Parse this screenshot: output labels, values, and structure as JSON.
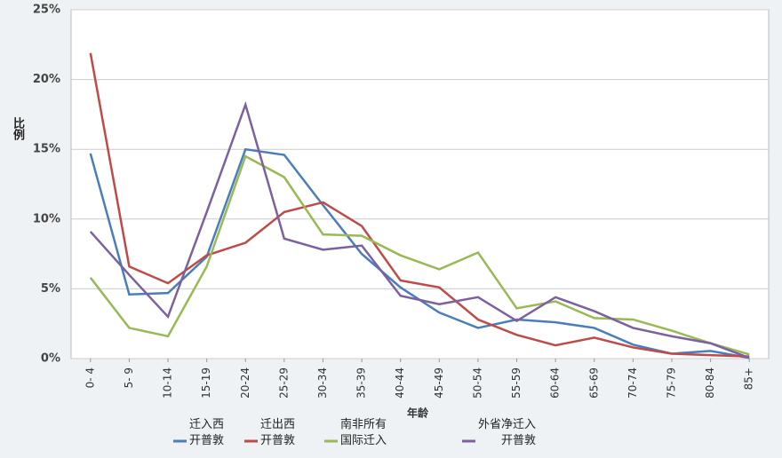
{
  "chart_data": {
    "type": "line",
    "x_label": "年龄",
    "y_label": "比例",
    "categories": [
      "0- 4",
      "5- 9",
      "10-14",
      "15-19",
      "20-24",
      "25-29",
      "30-34",
      "35-39",
      "40-44",
      "45-49",
      "50-54",
      "55-59",
      "60-64",
      "65-69",
      "70-74",
      "75-79",
      "80-84",
      "85+"
    ],
    "series": [
      {
        "name": "迁入西\n开普敦",
        "color": "#4a7ebb",
        "values": [
          14.7,
          4.6,
          4.7,
          7.3,
          15.0,
          14.6,
          11.0,
          7.5,
          5.1,
          3.3,
          2.2,
          2.8,
          2.6,
          2.2,
          1.0,
          0.35,
          0.55,
          0.05
        ]
      },
      {
        "name": "迁出西\n开普敦",
        "color": "#be4b48",
        "values": [
          21.9,
          6.6,
          5.4,
          7.4,
          8.3,
          10.5,
          11.2,
          9.5,
          5.6,
          5.1,
          2.8,
          1.7,
          0.95,
          1.5,
          0.8,
          0.35,
          0.25,
          0.15
        ]
      },
      {
        "name": "南非所有\n国际迁入",
        "color": "#98b954",
        "values": [
          5.8,
          2.2,
          1.6,
          6.6,
          14.5,
          13.0,
          8.9,
          8.8,
          7.4,
          6.4,
          7.6,
          3.6,
          4.1,
          2.9,
          2.8,
          2.0,
          1.1,
          0.3
        ]
      },
      {
        "name": "外省净迁入\n开普敦",
        "color": "#7d60a0",
        "values": [
          9.1,
          6.0,
          3.0,
          10.5,
          18.2,
          8.6,
          7.8,
          8.1,
          4.5,
          3.9,
          4.4,
          2.7,
          4.4,
          3.4,
          2.2,
          1.6,
          1.1,
          0.05
        ]
      }
    ],
    "ylim": [
      0,
      25
    ],
    "yticks": [
      {
        "value": 0,
        "label": "0%"
      },
      {
        "value": 5,
        "label": "5%"
      },
      {
        "value": 10,
        "label": "10%"
      },
      {
        "value": 15,
        "label": "15%"
      },
      {
        "value": 20,
        "label": "20%"
      },
      {
        "value": 25,
        "label": "25%"
      }
    ],
    "grid": true
  }
}
